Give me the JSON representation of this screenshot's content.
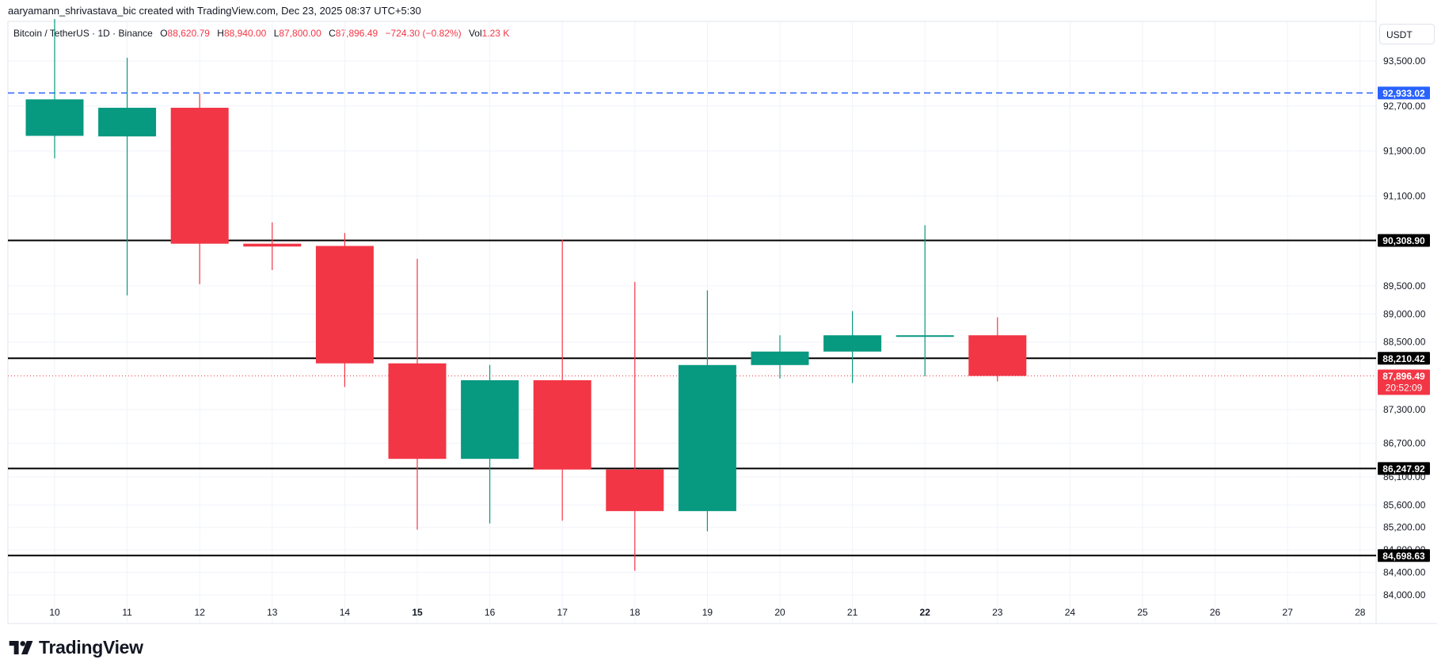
{
  "header": {
    "attribution": "aaryamann_shrivastava_bic created with TradingView.com, Dec 23, 2025 08:37 UTC+5:30"
  },
  "legend": {
    "symbol": "Bitcoin / TetherUS · 1D · Binance",
    "o_label": "O",
    "o_value": "88,620.79",
    "h_label": "H",
    "h_value": "88,940.00",
    "l_label": "L",
    "l_value": "87,800.00",
    "c_label": "C",
    "c_value": "87,896.49",
    "change": "−724.30 (−0.82%)",
    "vol_label": "Vol",
    "vol_value": "1.23 K"
  },
  "currency_button": "USDT",
  "brand": {
    "name": "TradingView"
  },
  "colors": {
    "up": "#089981",
    "down": "#F23645",
    "level_line": "#000000",
    "dashed_line": "#2962FF",
    "last_price_line": "#F23645",
    "grid": "#f0f3fa"
  },
  "chart_data": {
    "type": "candlestick",
    "ylim": [
      83800,
      94250
    ],
    "y_ticks": [
      {
        "value": 93500,
        "label": "93,500.00"
      },
      {
        "value": 92700,
        "label": "92,700.00"
      },
      {
        "value": 91900,
        "label": "91,900.00"
      },
      {
        "value": 91100,
        "label": "91,100.00"
      },
      {
        "value": 89500,
        "label": "89,500.00"
      },
      {
        "value": 89000,
        "label": "89,000.00"
      },
      {
        "value": 88500,
        "label": "88,500.00"
      },
      {
        "value": 87300,
        "label": "87,300.00"
      },
      {
        "value": 86700,
        "label": "86,700.00"
      },
      {
        "value": 86100,
        "label": "86,100.00"
      },
      {
        "value": 85600,
        "label": "85,600.00"
      },
      {
        "value": 85200,
        "label": "85,200.00"
      },
      {
        "value": 84800,
        "label": "84,800.00"
      },
      {
        "value": 84400,
        "label": "84,400.00"
      },
      {
        "value": 84000,
        "label": "84,000.00"
      }
    ],
    "x_labels": [
      {
        "label": "10",
        "bold": false
      },
      {
        "label": "11",
        "bold": false
      },
      {
        "label": "12",
        "bold": false
      },
      {
        "label": "13",
        "bold": false
      },
      {
        "label": "14",
        "bold": false
      },
      {
        "label": "15",
        "bold": true
      },
      {
        "label": "16",
        "bold": false
      },
      {
        "label": "17",
        "bold": false
      },
      {
        "label": "18",
        "bold": false
      },
      {
        "label": "19",
        "bold": false
      },
      {
        "label": "20",
        "bold": false
      },
      {
        "label": "21",
        "bold": false
      },
      {
        "label": "22",
        "bold": true
      },
      {
        "label": "23",
        "bold": false
      },
      {
        "label": "24",
        "bold": false
      },
      {
        "label": "25",
        "bold": false
      },
      {
        "label": "26",
        "bold": false
      },
      {
        "label": "27",
        "bold": false
      },
      {
        "label": "28",
        "bold": false
      }
    ],
    "candles": [
      {
        "day": "10",
        "open": 92170,
        "high": 94250,
        "low": 91770,
        "close": 92820
      },
      {
        "day": "11",
        "open": 92160,
        "high": 93560,
        "low": 89330,
        "close": 92670
      },
      {
        "day": "12",
        "open": 92670,
        "high": 92920,
        "low": 89530,
        "close": 90250
      },
      {
        "day": "13",
        "open": 90250,
        "high": 90630,
        "low": 89780,
        "close": 90200
      },
      {
        "day": "14",
        "open": 90210,
        "high": 90440,
        "low": 87700,
        "close": 88120
      },
      {
        "day": "15",
        "open": 88120,
        "high": 89980,
        "low": 85160,
        "close": 86420
      },
      {
        "day": "16",
        "open": 86420,
        "high": 88090,
        "low": 85270,
        "close": 87820
      },
      {
        "day": "17",
        "open": 87820,
        "high": 90320,
        "low": 85320,
        "close": 86230
      },
      {
        "day": "18",
        "open": 86230,
        "high": 89570,
        "low": 84430,
        "close": 85490
      },
      {
        "day": "19",
        "open": 85490,
        "high": 89420,
        "low": 85130,
        "close": 88090
      },
      {
        "day": "20",
        "open": 88090,
        "high": 88620,
        "low": 87850,
        "close": 88330
      },
      {
        "day": "21",
        "open": 88330,
        "high": 89050,
        "low": 87770,
        "close": 88620
      },
      {
        "day": "22",
        "open": 88620,
        "high": 90580,
        "low": 87890,
        "close": 88620
      },
      {
        "day": "23",
        "open": 88620,
        "high": 88940,
        "low": 87800,
        "close": 87896.49
      }
    ],
    "horizontal_levels": [
      {
        "value": 92933.02,
        "label": "92,933.02",
        "style": "dashed",
        "color": "#2962FF"
      },
      {
        "value": 90308.9,
        "label": "90,308.90",
        "style": "solid",
        "color": "#000000"
      },
      {
        "value": 88210.42,
        "label": "88,210.42",
        "style": "solid",
        "color": "#000000"
      },
      {
        "value": 86247.92,
        "label": "86,247.92",
        "style": "solid",
        "color": "#000000"
      },
      {
        "value": 84698.63,
        "label": "84,698.63",
        "style": "solid",
        "color": "#000000"
      }
    ],
    "last_price": {
      "value": 87896.49,
      "label": "87,896.49",
      "countdown": "20:52:09",
      "color": "#F23645"
    }
  }
}
